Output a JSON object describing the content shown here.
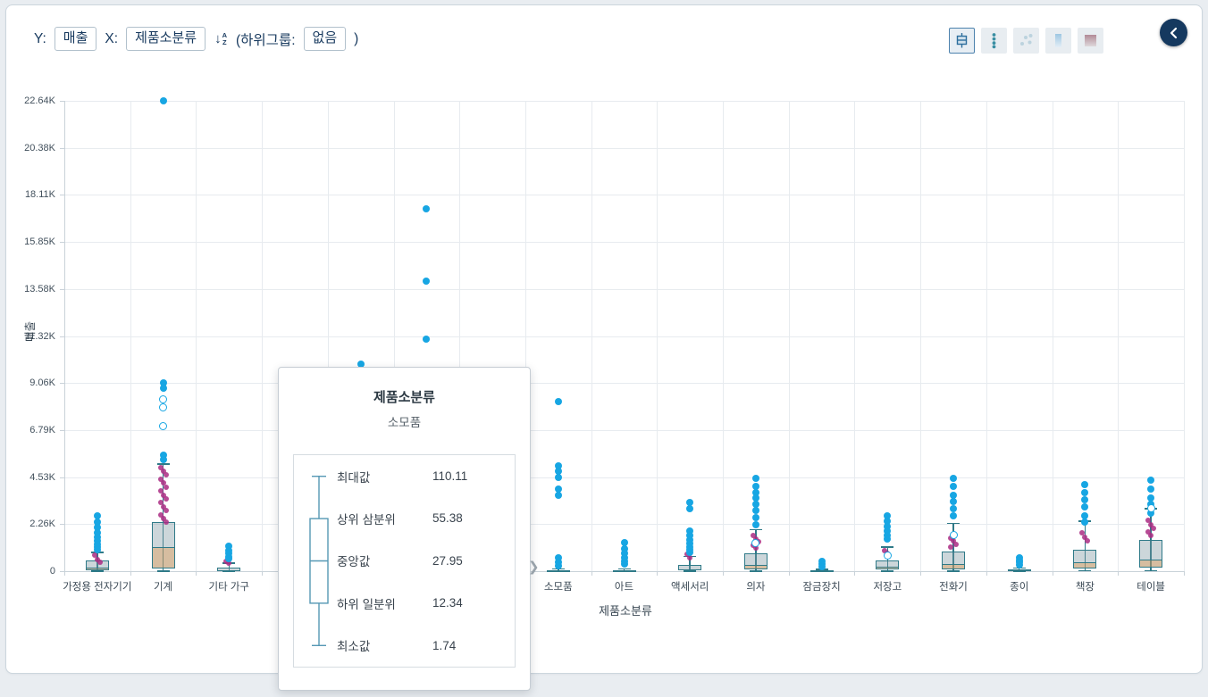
{
  "toolbar": {
    "y_label": "Y:",
    "y_value": "매출",
    "x_label": "X:",
    "x_value": "제품소분류",
    "sort_arrow": "↓",
    "sort_a": "A",
    "sort_z": "Z",
    "subgroup_prefix": "(하위그룹:",
    "subgroup_value": "없음",
    "subgroup_suffix": ")"
  },
  "chart_type_buttons": [
    {
      "id": "boxplot",
      "selected": true
    },
    {
      "id": "dot-column",
      "selected": false
    },
    {
      "id": "scatter",
      "selected": false
    },
    {
      "id": "strip",
      "selected": false
    },
    {
      "id": "gradient",
      "selected": false
    }
  ],
  "icons": {
    "tooltip_caret": "❯",
    "back_button": "chevron-left"
  },
  "tooltip": {
    "title": "제품소분류",
    "subtitle": "소모품",
    "rows": [
      {
        "label": "최대값",
        "value": "110.11"
      },
      {
        "label": "상위 삼분위",
        "value": "55.38"
      },
      {
        "label": "중앙값",
        "value": "27.95"
      },
      {
        "label": "하위 일분위",
        "value": "12.34"
      },
      {
        "label": "최소값",
        "value": "1.74"
      }
    ]
  },
  "chart_data": {
    "type": "boxplot",
    "title": "",
    "xlabel": "제품소분류",
    "ylabel": "매출",
    "y_max": 22640,
    "y_ticks": [
      "0",
      "2.26K",
      "4.53K",
      "6.79K",
      "9.06K",
      "11.32K",
      "13.58K",
      "15.85K",
      "18.11K",
      "20.38K",
      "22.64K"
    ],
    "legend": "none",
    "grid": true,
    "colors": {
      "dot_blue": "#17a6e3",
      "dot_magenta": "rgba(170,44,130,0.85)",
      "box_stroke": "#2f7a88",
      "box_fill_upper": "rgba(122,148,158,0.38)",
      "box_fill_lower": "rgba(189,148,102,0.62)",
      "accent_navy": "#15395f"
    },
    "categories": [
      {
        "label": "가정용 전자기기",
        "box": {
          "min": 5,
          "q1": 45,
          "median": 160,
          "q3": 520,
          "max": 900
        },
        "blue": [
          2660,
          2380,
          2100,
          1850,
          1640,
          1460,
          1300,
          1150,
          1020
        ],
        "magenta": [
          760,
          560,
          420
        ],
        "hollow": []
      },
      {
        "label": "기계",
        "box": {
          "min": 8,
          "q1": 130,
          "median": 1150,
          "q3": 2360,
          "max": 5150
        },
        "blue": [
          22640,
          9080,
          8800,
          5580,
          5350
        ],
        "magenta": [
          5000,
          4810,
          4620,
          4430,
          4240,
          4050,
          3860,
          3670,
          3480,
          3290,
          3100,
          2910,
          2720,
          2530,
          2350
        ],
        "hollow": [
          8250,
          7900,
          6960
        ]
      },
      {
        "label": "기타 가구",
        "box": {
          "min": 2,
          "q1": 18,
          "median": 55,
          "q3": 160,
          "max": 380
        },
        "blue": [
          1210,
          1000,
          840,
          700,
          580
        ],
        "magenta": [
          470,
          400
        ],
        "hollow": []
      },
      {
        "label": "",
        "box": null,
        "blue": [],
        "magenta": [],
        "hollow": []
      },
      {
        "label": "",
        "box": null,
        "blue": [
          9950
        ],
        "magenta": [],
        "hollow": []
      },
      {
        "label": "",
        "box": null,
        "blue": [
          17450,
          13950,
          11150
        ],
        "magenta": [],
        "hollow": []
      },
      {
        "label": "",
        "box": null,
        "blue": [],
        "magenta": [],
        "hollow": []
      },
      {
        "label": "소모품",
        "box": {
          "min": 1.74,
          "q1": 12.34,
          "median": 27.95,
          "q3": 55.38,
          "max": 110.11
        },
        "blue": [
          8160,
          5070,
          4810,
          4510,
          3950,
          3650,
          640,
          430,
          260
        ],
        "magenta": [],
        "hollow": []
      },
      {
        "label": "아트",
        "box": {
          "min": 1,
          "q1": 8,
          "median": 22,
          "q3": 50,
          "max": 110
        },
        "blue": [
          1380,
          1080,
          860,
          650,
          480,
          330
        ],
        "magenta": [],
        "hollow": []
      },
      {
        "label": "액세서리",
        "box": {
          "min": 3,
          "q1": 30,
          "median": 100,
          "q3": 300,
          "max": 700
        },
        "blue": [
          3310,
          3000,
          1930,
          1720,
          1510,
          1340,
          1180,
          1030,
          900
        ],
        "magenta": [
          800,
          640
        ],
        "hollow": []
      },
      {
        "label": "의자",
        "box": {
          "min": 6,
          "q1": 90,
          "median": 320,
          "q3": 850,
          "max": 2000
        },
        "blue": [
          4470,
          4080,
          3780,
          3520,
          3220,
          2920,
          2580,
          2240
        ],
        "magenta": [
          1720,
          1560,
          1400,
          1260,
          1130
        ],
        "hollow": [
          1370
        ]
      },
      {
        "label": "잠금장치",
        "box": {
          "min": 1,
          "q1": 6,
          "median": 15,
          "q3": 35,
          "max": 85
        },
        "blue": [
          470,
          330,
          210
        ],
        "magenta": [],
        "hollow": []
      },
      {
        "label": "저장고",
        "box": {
          "min": 4,
          "q1": 70,
          "median": 210,
          "q3": 520,
          "max": 1150
        },
        "blue": [
          2660,
          2400,
          2150,
          1930,
          1720,
          1540
        ],
        "magenta": [
          1000,
          870
        ],
        "hollow": [
          760
        ]
      },
      {
        "label": "전화기",
        "box": {
          "min": 6,
          "q1": 100,
          "median": 350,
          "q3": 950,
          "max": 2300
        },
        "blue": [
          4470,
          4080,
          3650,
          3350,
          3010,
          2660
        ],
        "magenta": [
          1600,
          1440,
          1290,
          1150
        ],
        "hollow": [
          1720
        ]
      },
      {
        "label": "종이",
        "box": {
          "min": 2,
          "q1": 12,
          "median": 30,
          "q3": 70,
          "max": 160
        },
        "blue": [
          640,
          520,
          410,
          300
        ],
        "magenta": [],
        "hollow": []
      },
      {
        "label": "책장",
        "box": {
          "min": 12,
          "q1": 130,
          "median": 430,
          "q3": 1050,
          "max": 2400
        },
        "blue": [
          4170,
          3780,
          3440,
          3090,
          2660,
          2360
        ],
        "magenta": [
          1850,
          1650,
          1470
        ],
        "hollow": []
      },
      {
        "label": "테이블",
        "box": {
          "min": 15,
          "q1": 160,
          "median": 550,
          "q3": 1500,
          "max": 3000
        },
        "blue": [
          4380,
          3950,
          3520,
          3220,
          2790
        ],
        "magenta": [
          2450,
          2250,
          2060,
          1880,
          1720
        ],
        "hollow": [
          3010
        ]
      }
    ]
  }
}
